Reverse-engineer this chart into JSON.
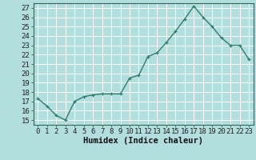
{
  "x": [
    0,
    1,
    2,
    3,
    4,
    5,
    6,
    7,
    8,
    9,
    10,
    11,
    12,
    13,
    14,
    15,
    16,
    17,
    18,
    19,
    20,
    21,
    22,
    23
  ],
  "y": [
    17.3,
    16.5,
    15.5,
    15.0,
    17.0,
    17.5,
    17.7,
    17.8,
    17.8,
    17.8,
    19.5,
    19.8,
    21.8,
    22.2,
    23.3,
    24.5,
    25.8,
    27.2,
    26.0,
    25.0,
    23.8,
    23.0,
    23.0,
    21.5
  ],
  "line_color": "#2e7d6e",
  "marker": "+",
  "marker_size": 3,
  "linewidth": 1.0,
  "xlabel": "Humidex (Indice chaleur)",
  "xlim": [
    -0.5,
    23.5
  ],
  "ylim": [
    14.5,
    27.5
  ],
  "yticks": [
    15,
    16,
    17,
    18,
    19,
    20,
    21,
    22,
    23,
    24,
    25,
    26,
    27
  ],
  "xticks": [
    0,
    1,
    2,
    3,
    4,
    5,
    6,
    7,
    8,
    9,
    10,
    11,
    12,
    13,
    14,
    15,
    16,
    17,
    18,
    19,
    20,
    21,
    22,
    23
  ],
  "background_color": "#b2dede",
  "grid_color": "#ffffff",
  "tick_fontsize": 6.5,
  "xlabel_fontsize": 7.5
}
